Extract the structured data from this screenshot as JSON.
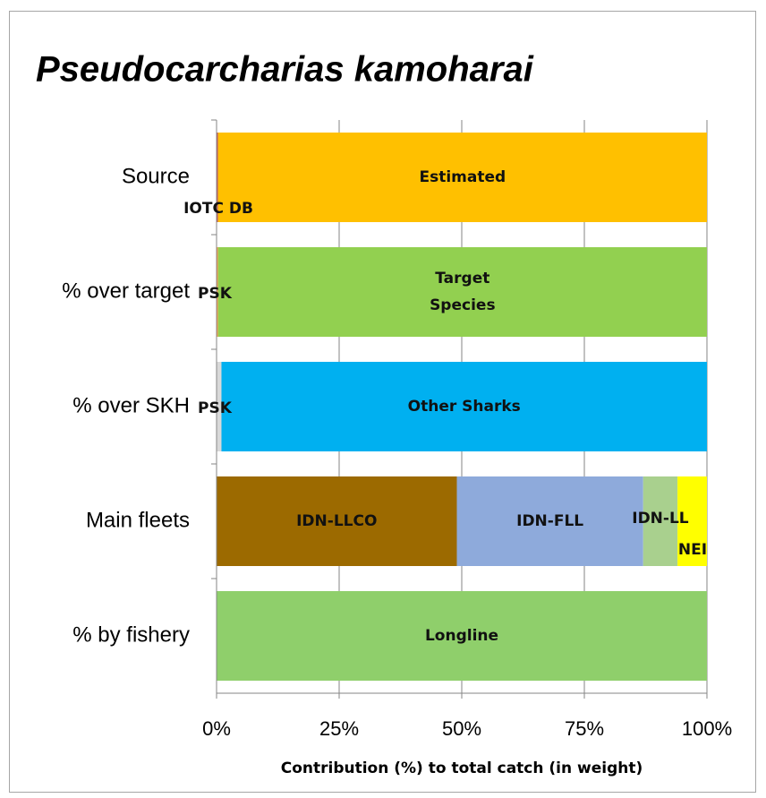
{
  "chart_data": {
    "type": "stacked-barh",
    "title": "Pseudocarcharias kamoharai",
    "xlabel": "Contribution  (%) to total catch (in weight)",
    "xlim": [
      0,
      100
    ],
    "xticks": [
      {
        "value": 0,
        "label": "0%"
      },
      {
        "value": 25,
        "label": "25%"
      },
      {
        "value": 50,
        "label": "50%"
      },
      {
        "value": 75,
        "label": "75%"
      },
      {
        "value": 100,
        "label": "100%"
      }
    ],
    "grid": true,
    "bars": [
      {
        "category": "Source",
        "segments": [
          {
            "label": "IOTC DB",
            "value": 0.3,
            "color": "#c0504d"
          },
          {
            "label": "Estimated",
            "value": 99.7,
            "color": "#ffc000"
          }
        ]
      },
      {
        "category": "% over target",
        "segments": [
          {
            "label": "PSK",
            "value": 0.3,
            "color": "#f79646"
          },
          {
            "label": "Target Species",
            "value": 99.7,
            "color": "#92d050"
          }
        ]
      },
      {
        "category": "% over SKH",
        "segments": [
          {
            "label": "PSK",
            "value": 1,
            "color": "#d9d9d9"
          },
          {
            "label": "Other Sharks",
            "value": 99,
            "color": "#00b0f0"
          }
        ]
      },
      {
        "category": "Main fleets",
        "segments": [
          {
            "label": "IDN-LLCO",
            "value": 49,
            "color": "#9c6a00"
          },
          {
            "label": "IDN-FLL",
            "value": 38,
            "color": "#8eaadb"
          },
          {
            "label": "IDN-LL",
            "value": 7,
            "color": "#a9d08e"
          },
          {
            "label": "NEI",
            "value": 6,
            "color": "#ffff00"
          }
        ]
      },
      {
        "category": "% by fishery",
        "segments": [
          {
            "label": "Longline",
            "value": 100,
            "color": "#8fcf6b"
          }
        ]
      }
    ]
  }
}
